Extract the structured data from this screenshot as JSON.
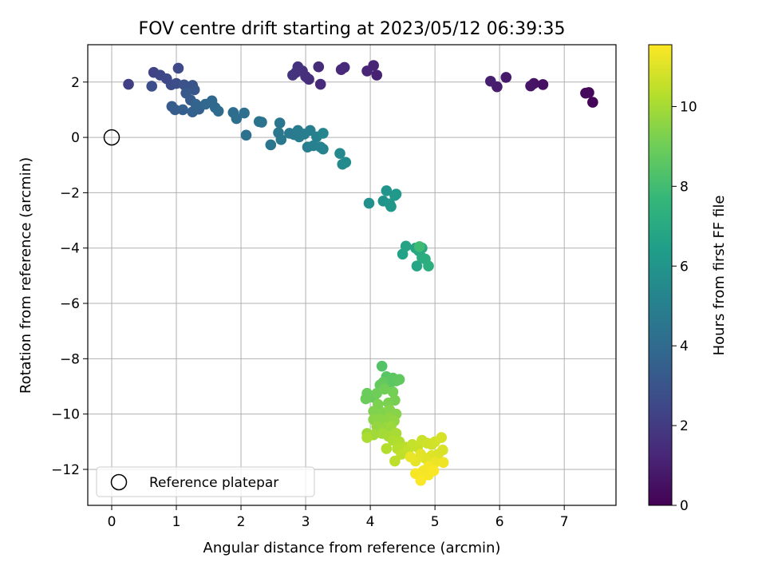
{
  "chart_data": {
    "type": "scatter",
    "title": "FOV centre drift starting at 2023/05/12 06:39:35",
    "xlabel": "Angular distance from reference (arcmin)",
    "ylabel": "Rotation from reference (arcmin)",
    "xlim": [
      -0.37,
      7.8
    ],
    "ylim": [
      -13.3,
      3.35
    ],
    "xticks": [
      0,
      1,
      2,
      3,
      4,
      5,
      6,
      7
    ],
    "yticks": [
      2,
      0,
      -2,
      -4,
      -6,
      -8,
      -10,
      -12
    ],
    "xtick_labels": [
      "0",
      "1",
      "2",
      "3",
      "4",
      "5",
      "6",
      "7"
    ],
    "ytick_labels": [
      "2",
      "0",
      "−2",
      "−4",
      "−6",
      "−8",
      "−10",
      "−12"
    ],
    "grid": true,
    "colormap": "viridis",
    "colorbar": {
      "label": "Hours from first FF file",
      "range": [
        0,
        11.55
      ],
      "ticks": [
        0,
        2,
        4,
        6,
        8,
        10
      ],
      "tick_labels": [
        "0",
        "2",
        "4",
        "6",
        "8",
        "10"
      ]
    },
    "legend": {
      "position": "lower-left",
      "label": "Reference platepar"
    },
    "reference_point": {
      "x": 0,
      "y": 0
    },
    "points": [
      {
        "x": 7.44,
        "y": 1.27,
        "t": 0.1
      },
      {
        "x": 7.38,
        "y": 1.62,
        "t": 0.2
      },
      {
        "x": 7.33,
        "y": 1.6,
        "t": 0.3
      },
      {
        "x": 6.67,
        "y": 1.91,
        "t": 0.5
      },
      {
        "x": 6.53,
        "y": 1.95,
        "t": 0.6
      },
      {
        "x": 6.48,
        "y": 1.86,
        "t": 0.65
      },
      {
        "x": 6.1,
        "y": 2.17,
        "t": 0.8
      },
      {
        "x": 5.96,
        "y": 1.83,
        "t": 0.9
      },
      {
        "x": 5.86,
        "y": 2.03,
        "t": 1.0
      },
      {
        "x": 4.1,
        "y": 2.25,
        "t": 1.1
      },
      {
        "x": 4.05,
        "y": 2.6,
        "t": 1.15
      },
      {
        "x": 3.95,
        "y": 2.4,
        "t": 1.2
      },
      {
        "x": 3.6,
        "y": 2.53,
        "t": 1.3
      },
      {
        "x": 3.55,
        "y": 2.45,
        "t": 1.35
      },
      {
        "x": 3.23,
        "y": 1.92,
        "t": 1.4
      },
      {
        "x": 3.2,
        "y": 2.55,
        "t": 1.45
      },
      {
        "x": 3.05,
        "y": 2.1,
        "t": 1.5
      },
      {
        "x": 3.0,
        "y": 2.2,
        "t": 1.55
      },
      {
        "x": 2.95,
        "y": 2.4,
        "t": 1.6
      },
      {
        "x": 2.88,
        "y": 2.55,
        "t": 1.65
      },
      {
        "x": 2.85,
        "y": 2.35,
        "t": 1.7
      },
      {
        "x": 2.8,
        "y": 2.25,
        "t": 1.75
      },
      {
        "x": 0.26,
        "y": 1.92,
        "t": 2.2
      },
      {
        "x": 0.65,
        "y": 2.35,
        "t": 2.3
      },
      {
        "x": 0.75,
        "y": 2.25,
        "t": 2.4
      },
      {
        "x": 0.85,
        "y": 2.12,
        "t": 2.5
      },
      {
        "x": 1.03,
        "y": 2.5,
        "t": 2.55
      },
      {
        "x": 0.92,
        "y": 1.9,
        "t": 2.6
      },
      {
        "x": 1.0,
        "y": 1.95,
        "t": 2.7
      },
      {
        "x": 0.62,
        "y": 1.85,
        "t": 2.8
      },
      {
        "x": 1.12,
        "y": 1.9,
        "t": 2.9
      },
      {
        "x": 1.25,
        "y": 1.88,
        "t": 3.0
      },
      {
        "x": 1.28,
        "y": 1.72,
        "t": 3.1
      },
      {
        "x": 1.15,
        "y": 1.6,
        "t": 3.2
      },
      {
        "x": 1.22,
        "y": 1.35,
        "t": 3.3
      },
      {
        "x": 0.93,
        "y": 1.12,
        "t": 3.35
      },
      {
        "x": 0.98,
        "y": 1.0,
        "t": 3.4
      },
      {
        "x": 1.1,
        "y": 1.0,
        "t": 3.5
      },
      {
        "x": 1.25,
        "y": 0.92,
        "t": 3.55
      },
      {
        "x": 1.35,
        "y": 1.02,
        "t": 3.6
      },
      {
        "x": 1.3,
        "y": 1.2,
        "t": 3.7
      },
      {
        "x": 1.45,
        "y": 1.2,
        "t": 3.8
      },
      {
        "x": 1.55,
        "y": 1.32,
        "t": 3.85
      },
      {
        "x": 1.6,
        "y": 1.08,
        "t": 3.9
      },
      {
        "x": 1.65,
        "y": 0.95,
        "t": 4.0
      },
      {
        "x": 1.88,
        "y": 0.9,
        "t": 4.1
      },
      {
        "x": 1.93,
        "y": 0.68,
        "t": 4.2
      },
      {
        "x": 2.05,
        "y": 0.88,
        "t": 4.25
      },
      {
        "x": 2.08,
        "y": 0.08,
        "t": 4.3
      },
      {
        "x": 2.28,
        "y": 0.57,
        "t": 4.4
      },
      {
        "x": 2.32,
        "y": 0.55,
        "t": 4.45
      },
      {
        "x": 2.46,
        "y": -0.27,
        "t": 4.5
      },
      {
        "x": 2.6,
        "y": 0.52,
        "t": 4.55
      },
      {
        "x": 2.58,
        "y": 0.17,
        "t": 4.6
      },
      {
        "x": 2.62,
        "y": -0.08,
        "t": 4.65
      },
      {
        "x": 2.75,
        "y": 0.15,
        "t": 4.7
      },
      {
        "x": 2.82,
        "y": 0.1,
        "t": 4.75
      },
      {
        "x": 2.88,
        "y": 0.25,
        "t": 4.8
      },
      {
        "x": 2.9,
        "y": 0.02,
        "t": 4.85
      },
      {
        "x": 2.98,
        "y": 0.12,
        "t": 4.9
      },
      {
        "x": 3.03,
        "y": -0.35,
        "t": 4.95
      },
      {
        "x": 3.07,
        "y": 0.25,
        "t": 5.0
      },
      {
        "x": 3.12,
        "y": -0.3,
        "t": 5.05
      },
      {
        "x": 3.17,
        "y": 0.02,
        "t": 5.1
      },
      {
        "x": 3.23,
        "y": -0.35,
        "t": 5.15
      },
      {
        "x": 3.27,
        "y": -0.42,
        "t": 5.2
      },
      {
        "x": 3.27,
        "y": 0.15,
        "t": 5.25
      },
      {
        "x": 3.53,
        "y": -0.58,
        "t": 5.4
      },
      {
        "x": 3.57,
        "y": -0.97,
        "t": 5.5
      },
      {
        "x": 3.62,
        "y": -0.9,
        "t": 5.55
      },
      {
        "x": 3.98,
        "y": -2.38,
        "t": 5.8
      },
      {
        "x": 4.2,
        "y": -2.3,
        "t": 5.9
      },
      {
        "x": 4.25,
        "y": -1.93,
        "t": 6.0
      },
      {
        "x": 4.3,
        "y": -2.4,
        "t": 6.05
      },
      {
        "x": 4.32,
        "y": -2.5,
        "t": 6.1
      },
      {
        "x": 4.38,
        "y": -2.1,
        "t": 6.15
      },
      {
        "x": 4.4,
        "y": -2.05,
        "t": 6.2
      },
      {
        "x": 4.5,
        "y": -4.22,
        "t": 6.6
      },
      {
        "x": 4.55,
        "y": -3.93,
        "t": 6.7
      },
      {
        "x": 4.7,
        "y": -4.0,
        "t": 6.8
      },
      {
        "x": 4.72,
        "y": -4.65,
        "t": 6.85
      },
      {
        "x": 4.75,
        "y": -4.1,
        "t": 6.9
      },
      {
        "x": 4.8,
        "y": -4.0,
        "t": 7.0
      },
      {
        "x": 4.8,
        "y": -4.35,
        "t": 7.1
      },
      {
        "x": 4.85,
        "y": -4.4,
        "t": 7.2
      },
      {
        "x": 4.9,
        "y": -4.65,
        "t": 7.25
      },
      {
        "x": 4.76,
        "y": -3.95,
        "t": 7.9
      },
      {
        "x": 4.18,
        "y": -8.27,
        "t": 8.4
      },
      {
        "x": 4.25,
        "y": -8.65,
        "t": 8.5
      },
      {
        "x": 4.3,
        "y": -8.9,
        "t": 8.55
      },
      {
        "x": 4.35,
        "y": -8.7,
        "t": 8.6
      },
      {
        "x": 4.4,
        "y": -8.8,
        "t": 8.65
      },
      {
        "x": 4.45,
        "y": -8.75,
        "t": 8.7
      },
      {
        "x": 4.2,
        "y": -8.85,
        "t": 8.75
      },
      {
        "x": 4.15,
        "y": -8.95,
        "t": 8.8
      },
      {
        "x": 4.05,
        "y": -9.4,
        "t": 8.85
      },
      {
        "x": 3.95,
        "y": -9.25,
        "t": 8.9
      },
      {
        "x": 3.93,
        "y": -9.45,
        "t": 8.95
      },
      {
        "x": 4.1,
        "y": -9.25,
        "t": 9.0
      },
      {
        "x": 4.22,
        "y": -9.1,
        "t": 9.05
      },
      {
        "x": 4.35,
        "y": -9.2,
        "t": 9.1
      },
      {
        "x": 4.38,
        "y": -9.5,
        "t": 9.15
      },
      {
        "x": 4.28,
        "y": -9.6,
        "t": 9.2
      },
      {
        "x": 4.12,
        "y": -9.65,
        "t": 9.25
      },
      {
        "x": 4.05,
        "y": -9.9,
        "t": 9.3
      },
      {
        "x": 4.2,
        "y": -9.95,
        "t": 9.35
      },
      {
        "x": 4.3,
        "y": -9.85,
        "t": 9.4
      },
      {
        "x": 4.4,
        "y": -10.0,
        "t": 9.45
      },
      {
        "x": 4.05,
        "y": -10.2,
        "t": 9.5
      },
      {
        "x": 4.15,
        "y": -10.2,
        "t": 9.55
      },
      {
        "x": 4.28,
        "y": -10.15,
        "t": 9.6
      },
      {
        "x": 4.37,
        "y": -10.25,
        "t": 9.65
      },
      {
        "x": 4.1,
        "y": -10.45,
        "t": 9.7
      },
      {
        "x": 4.22,
        "y": -10.5,
        "t": 9.75
      },
      {
        "x": 4.32,
        "y": -10.45,
        "t": 9.8
      },
      {
        "x": 3.95,
        "y": -10.7,
        "t": 9.85
      },
      {
        "x": 4.05,
        "y": -10.75,
        "t": 9.9
      },
      {
        "x": 4.18,
        "y": -10.7,
        "t": 9.95
      },
      {
        "x": 4.28,
        "y": -10.8,
        "t": 10.0
      },
      {
        "x": 4.4,
        "y": -10.7,
        "t": 10.05
      },
      {
        "x": 3.95,
        "y": -10.85,
        "t": 10.1
      },
      {
        "x": 4.35,
        "y": -10.95,
        "t": 10.15
      },
      {
        "x": 4.45,
        "y": -11.0,
        "t": 10.2
      },
      {
        "x": 4.25,
        "y": -11.25,
        "t": 10.25
      },
      {
        "x": 4.42,
        "y": -11.25,
        "t": 10.3
      },
      {
        "x": 4.55,
        "y": -11.2,
        "t": 10.35
      },
      {
        "x": 4.38,
        "y": -11.7,
        "t": 10.4
      },
      {
        "x": 4.48,
        "y": -11.45,
        "t": 10.45
      },
      {
        "x": 4.58,
        "y": -11.35,
        "t": 10.5
      },
      {
        "x": 4.65,
        "y": -11.1,
        "t": 10.55
      },
      {
        "x": 4.73,
        "y": -11.2,
        "t": 10.6
      },
      {
        "x": 4.8,
        "y": -10.95,
        "t": 10.65
      },
      {
        "x": 4.88,
        "y": -11.05,
        "t": 10.7
      },
      {
        "x": 4.95,
        "y": -11.1,
        "t": 10.75
      },
      {
        "x": 5.0,
        "y": -11.0,
        "t": 10.8
      },
      {
        "x": 5.1,
        "y": -10.85,
        "t": 10.85
      },
      {
        "x": 5.12,
        "y": -11.3,
        "t": 10.9
      },
      {
        "x": 5.05,
        "y": -11.45,
        "t": 10.95
      },
      {
        "x": 4.95,
        "y": -11.5,
        "t": 11.0
      },
      {
        "x": 4.85,
        "y": -11.6,
        "t": 11.05
      },
      {
        "x": 4.78,
        "y": -11.45,
        "t": 11.1
      },
      {
        "x": 4.7,
        "y": -11.7,
        "t": 11.15
      },
      {
        "x": 4.62,
        "y": -11.55,
        "t": 11.2
      },
      {
        "x": 5.0,
        "y": -11.75,
        "t": 11.25
      },
      {
        "x": 5.13,
        "y": -11.75,
        "t": 11.3
      },
      {
        "x": 4.9,
        "y": -11.9,
        "t": 11.35
      },
      {
        "x": 4.82,
        "y": -12.05,
        "t": 11.4
      },
      {
        "x": 4.7,
        "y": -12.15,
        "t": 11.42
      },
      {
        "x": 4.9,
        "y": -12.2,
        "t": 11.45
      },
      {
        "x": 4.98,
        "y": -12.05,
        "t": 11.48
      },
      {
        "x": 4.78,
        "y": -12.4,
        "t": 11.5
      }
    ]
  }
}
